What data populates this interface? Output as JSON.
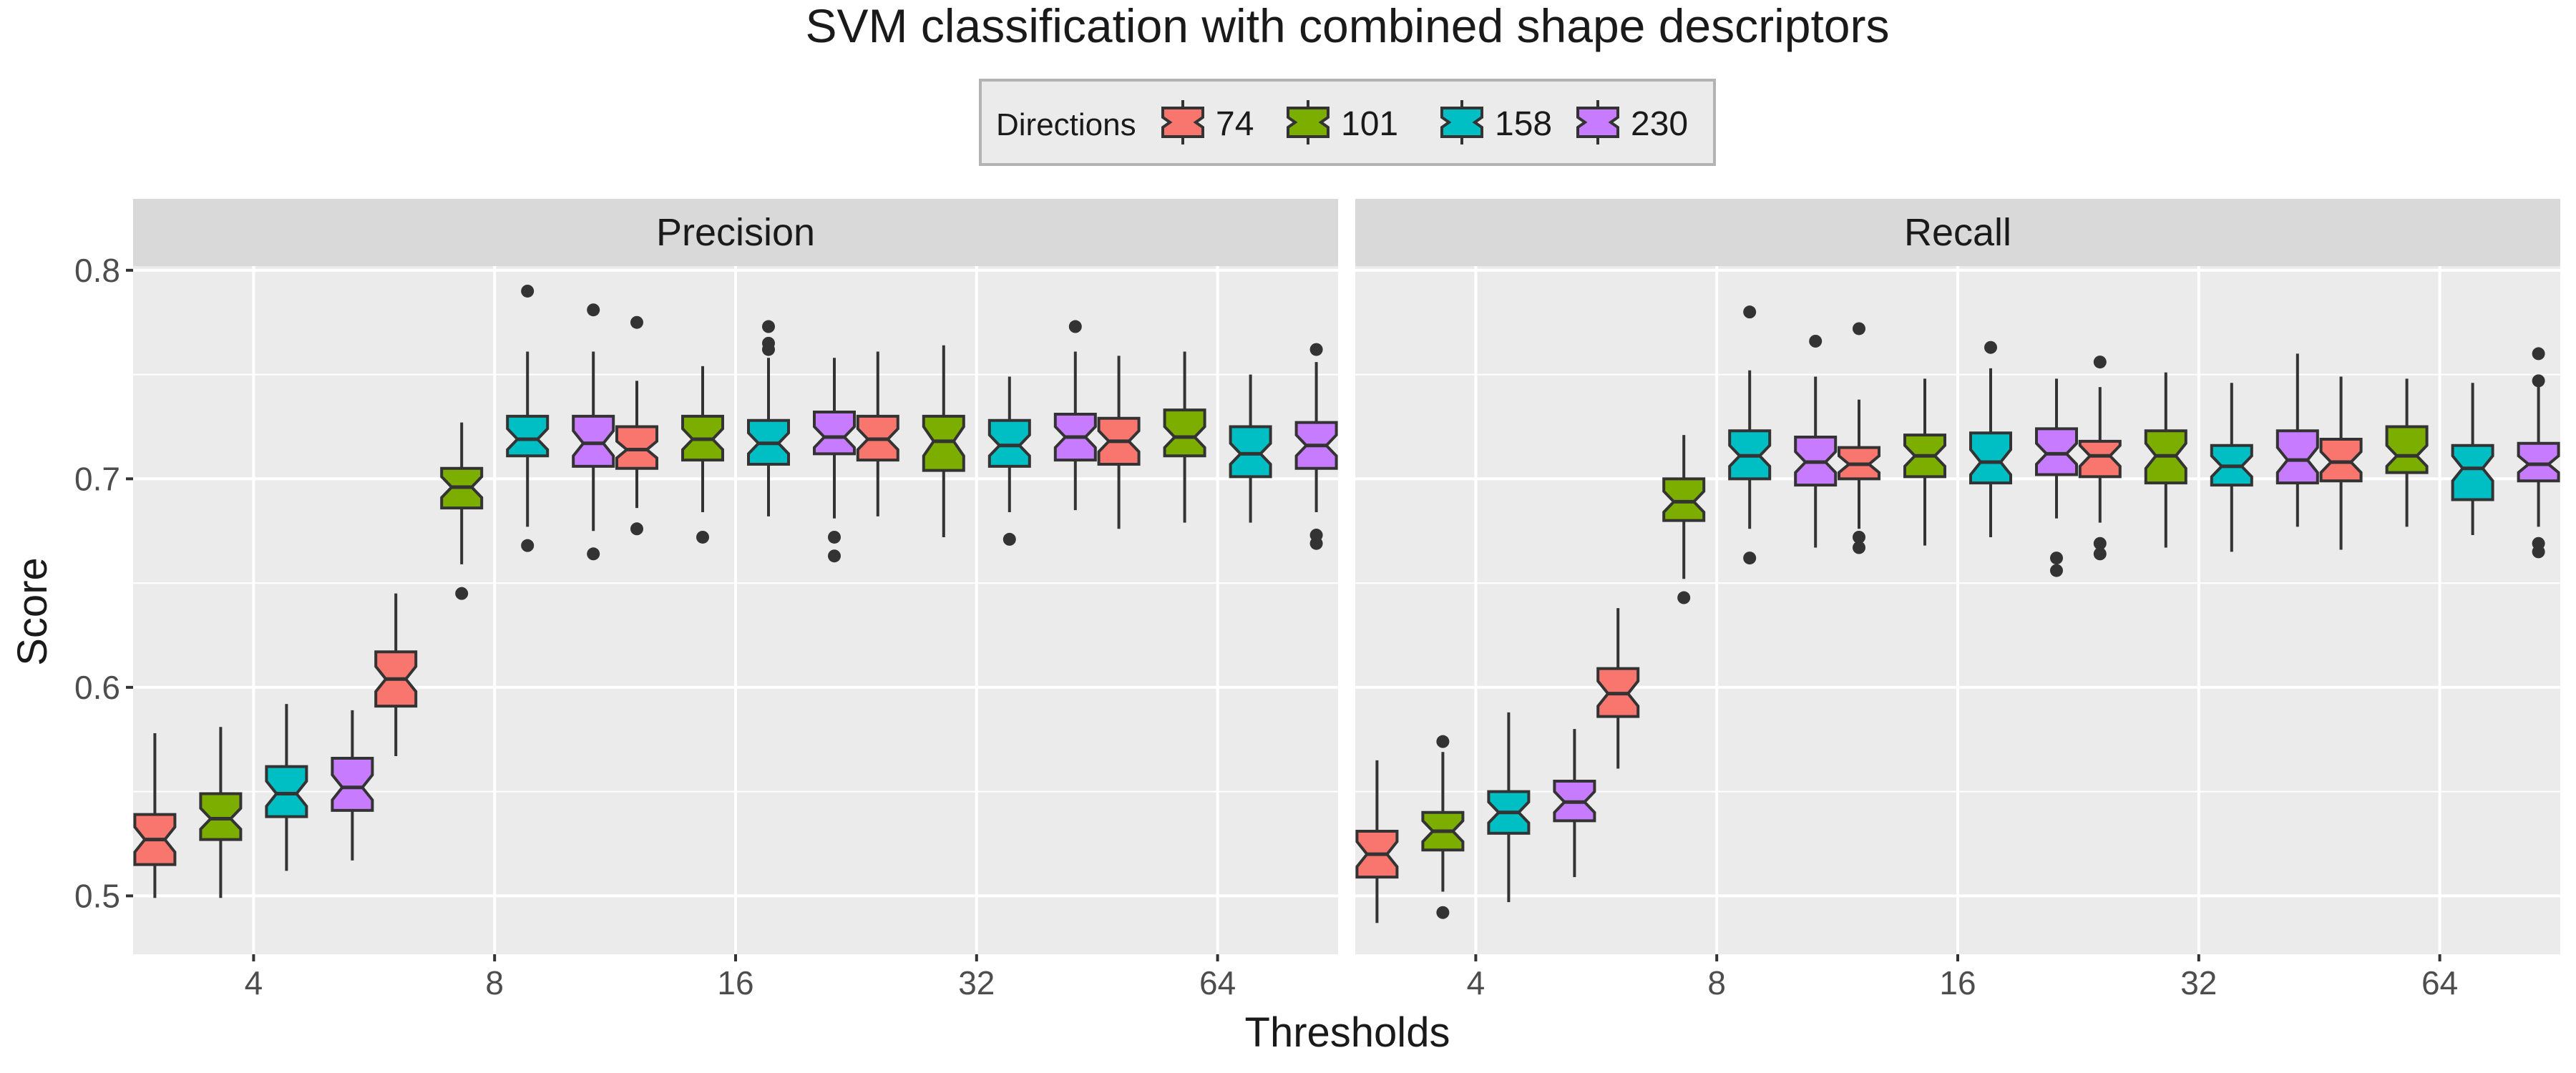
{
  "chart_data": {
    "type": "box",
    "title": "SVM classification with combined shape descriptors",
    "xlabel": "Thresholds",
    "ylabel": "Score",
    "ylim": [
      0.472,
      0.802
    ],
    "yticks": [
      "0.5",
      "0.6",
      "0.7",
      "0.8"
    ],
    "categories": [
      "4",
      "8",
      "16",
      "32",
      "64"
    ],
    "grid": true,
    "legend": {
      "title": "Directions",
      "placement": "top",
      "entries": [
        "74",
        "101",
        "158",
        "230"
      ]
    },
    "colors": {
      "74": "#f8766d",
      "101": "#7cae00",
      "158": "#00bfc4",
      "230": "#c77cff",
      "panel_bg": "#ebebeb",
      "strip_bg": "#d9d9d9",
      "grid": "#ffffff"
    },
    "stat_order": [
      "whisker_low",
      "q1",
      "median",
      "q3",
      "whisker_high",
      "notch_low",
      "notch_high",
      "outliers"
    ],
    "facets": [
      {
        "name": "Precision",
        "boxes": [
          [
            [
              0.499,
              0.515,
              0.527,
              0.539,
              0.578,
              0.521,
              0.533,
              []
            ],
            [
              0.499,
              0.527,
              0.537,
              0.549,
              0.581,
              0.532,
              0.542,
              []
            ],
            [
              0.512,
              0.538,
              0.549,
              0.562,
              0.592,
              0.543,
              0.555,
              []
            ],
            [
              0.517,
              0.541,
              0.552,
              0.566,
              0.589,
              0.546,
              0.558,
              []
            ]
          ],
          [
            [
              0.567,
              0.591,
              0.604,
              0.617,
              0.645,
              0.598,
              0.61,
              []
            ],
            [
              0.659,
              0.686,
              0.696,
              0.705,
              0.727,
              0.691,
              0.701,
              [
                0.645
              ]
            ],
            [
              0.677,
              0.711,
              0.719,
              0.73,
              0.761,
              0.714,
              0.724,
              [
                0.79,
                0.668
              ]
            ],
            [
              0.675,
              0.706,
              0.717,
              0.73,
              0.761,
              0.711,
              0.723,
              [
                0.781,
                0.664
              ]
            ]
          ],
          [
            [
              0.686,
              0.705,
              0.714,
              0.725,
              0.747,
              0.71,
              0.718,
              [
                0.775,
                0.676
              ]
            ],
            [
              0.684,
              0.709,
              0.719,
              0.73,
              0.754,
              0.714,
              0.724,
              [
                0.672
              ]
            ],
            [
              0.682,
              0.707,
              0.717,
              0.728,
              0.758,
              0.712,
              0.722,
              [
                0.773,
                0.765,
                0.762
              ]
            ],
            [
              0.681,
              0.712,
              0.72,
              0.732,
              0.758,
              0.715,
              0.725,
              [
                0.672,
                0.663
              ]
            ]
          ],
          [
            [
              0.682,
              0.709,
              0.719,
              0.73,
              0.761,
              0.714,
              0.724,
              []
            ],
            [
              0.672,
              0.704,
              0.718,
              0.73,
              0.764,
              0.711,
              0.725,
              []
            ],
            [
              0.684,
              0.706,
              0.716,
              0.728,
              0.749,
              0.711,
              0.721,
              [
                0.671
              ]
            ],
            [
              0.685,
              0.709,
              0.72,
              0.731,
              0.761,
              0.715,
              0.725,
              [
                0.773
              ]
            ]
          ],
          [
            [
              0.676,
              0.707,
              0.718,
              0.729,
              0.759,
              0.713,
              0.723,
              []
            ],
            [
              0.679,
              0.711,
              0.72,
              0.733,
              0.761,
              0.715,
              0.725,
              []
            ],
            [
              0.679,
              0.701,
              0.712,
              0.725,
              0.75,
              0.707,
              0.717,
              []
            ],
            [
              0.684,
              0.705,
              0.716,
              0.727,
              0.756,
              0.711,
              0.721,
              [
                0.762,
                0.673,
                0.669
              ]
            ]
          ]
        ]
      },
      {
        "name": "Recall",
        "boxes": [
          [
            [
              0.487,
              0.509,
              0.52,
              0.531,
              0.565,
              0.514,
              0.526,
              []
            ],
            [
              0.502,
              0.522,
              0.531,
              0.54,
              0.569,
              0.526,
              0.536,
              [
                0.574,
                0.492
              ]
            ],
            [
              0.497,
              0.53,
              0.54,
              0.55,
              0.588,
              0.535,
              0.545,
              []
            ],
            [
              0.509,
              0.536,
              0.545,
              0.555,
              0.58,
              0.54,
              0.55,
              []
            ]
          ],
          [
            [
              0.561,
              0.586,
              0.597,
              0.609,
              0.638,
              0.591,
              0.603,
              []
            ],
            [
              0.652,
              0.68,
              0.689,
              0.7,
              0.721,
              0.684,
              0.694,
              [
                0.643
              ]
            ],
            [
              0.676,
              0.7,
              0.711,
              0.723,
              0.752,
              0.706,
              0.716,
              [
                0.78,
                0.662
              ]
            ],
            [
              0.667,
              0.697,
              0.708,
              0.72,
              0.749,
              0.703,
              0.713,
              [
                0.766
              ]
            ]
          ],
          [
            [
              0.676,
              0.7,
              0.707,
              0.715,
              0.738,
              0.703,
              0.711,
              [
                0.772,
                0.672,
                0.667
              ]
            ],
            [
              0.668,
              0.701,
              0.711,
              0.721,
              0.748,
              0.706,
              0.716,
              []
            ],
            [
              0.672,
              0.698,
              0.708,
              0.722,
              0.753,
              0.702,
              0.714,
              [
                0.763
              ]
            ],
            [
              0.681,
              0.702,
              0.712,
              0.724,
              0.748,
              0.707,
              0.717,
              [
                0.662,
                0.656
              ]
            ]
          ],
          [
            [
              0.679,
              0.701,
              0.711,
              0.718,
              0.744,
              0.706,
              0.716,
              [
                0.756,
                0.669,
                0.664
              ]
            ],
            [
              0.667,
              0.698,
              0.711,
              0.723,
              0.751,
              0.705,
              0.717,
              []
            ],
            [
              0.665,
              0.697,
              0.706,
              0.716,
              0.746,
              0.701,
              0.711,
              []
            ],
            [
              0.677,
              0.698,
              0.709,
              0.723,
              0.76,
              0.703,
              0.715,
              []
            ]
          ],
          [
            [
              0.666,
              0.699,
              0.708,
              0.719,
              0.749,
              0.703,
              0.713,
              []
            ],
            [
              0.677,
              0.703,
              0.711,
              0.725,
              0.748,
              0.706,
              0.716,
              []
            ],
            [
              0.673,
              0.69,
              0.705,
              0.716,
              0.746,
              0.699,
              0.711,
              []
            ],
            [
              0.677,
              0.699,
              0.707,
              0.717,
              0.75,
              0.703,
              0.711,
              [
                0.76,
                0.747,
                0.669,
                0.665
              ]
            ]
          ]
        ]
      }
    ]
  }
}
